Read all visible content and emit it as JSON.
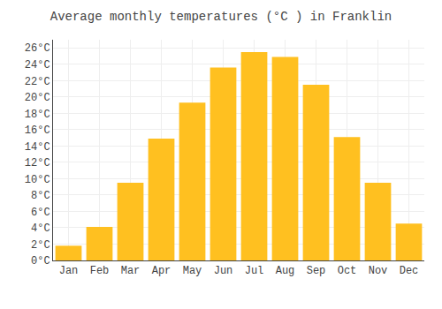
{
  "chart_data": {
    "type": "bar",
    "title": "Average monthly temperatures (°C ) in Franklin",
    "categories": [
      "Jan",
      "Feb",
      "Mar",
      "Apr",
      "May",
      "Jun",
      "Jul",
      "Aug",
      "Sep",
      "Oct",
      "Nov",
      "Dec"
    ],
    "values": [
      1.8,
      4.1,
      9.5,
      14.9,
      19.3,
      23.6,
      25.5,
      24.9,
      21.5,
      15.1,
      9.5,
      4.5
    ],
    "color": "#FFC020",
    "ylim": [
      0,
      27
    ],
    "yticks": [
      {
        "value": 0,
        "label": "0°C"
      },
      {
        "value": 2,
        "label": "2°C"
      },
      {
        "value": 4,
        "label": "4°C"
      },
      {
        "value": 6,
        "label": "6°C"
      },
      {
        "value": 8,
        "label": "8°C"
      },
      {
        "value": 10,
        "label": "10°C"
      },
      {
        "value": 12,
        "label": "12°C"
      },
      {
        "value": 14,
        "label": "14°C"
      },
      {
        "value": 16,
        "label": "16°C"
      },
      {
        "value": 18,
        "label": "18°C"
      },
      {
        "value": 20,
        "label": "20°C"
      },
      {
        "value": 22,
        "label": "22°C"
      },
      {
        "value": 24,
        "label": "24°C"
      },
      {
        "value": 26,
        "label": "26°C"
      }
    ],
    "grid": true
  }
}
